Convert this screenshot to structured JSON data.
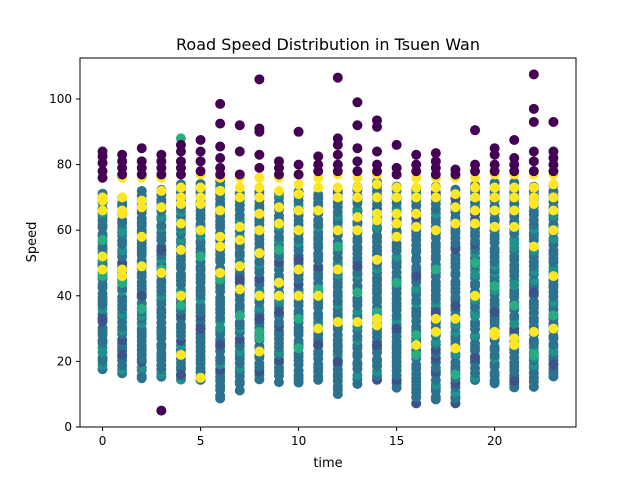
{
  "chart_data": {
    "type": "scatter",
    "title": "Road Speed Distribution in Tsuen Wan",
    "xlabel": "time",
    "ylabel": "Speed",
    "xlim": [
      -1.15,
      24.15
    ],
    "ylim": [
      0,
      112.5
    ],
    "x_ticks": [
      0,
      5,
      10,
      15,
      20
    ],
    "y_ticks": [
      0,
      20,
      40,
      60,
      80,
      100
    ],
    "grid": false,
    "legend": "none",
    "colors": {
      "dark_purple": "#440154",
      "purple_blue": "#3b528b",
      "teal_blue": "#2c728e",
      "green_teal": "#21918c",
      "sea_green": "#27ad81",
      "green": "#5ec962",
      "yellow": "#fde725"
    },
    "hours": [
      0,
      1,
      2,
      3,
      4,
      5,
      6,
      7,
      8,
      9,
      10,
      11,
      12,
      13,
      14,
      15,
      16,
      17,
      18,
      19,
      20,
      21,
      22,
      23
    ],
    "band_low": [
      17.5,
      16.5,
      14.5,
      15,
      14.5,
      14,
      8.5,
      11.5,
      14.5,
      14,
      13.5,
      14,
      10,
      13.5,
      14.5,
      12,
      7.5,
      8,
      7,
      14,
      13,
      12,
      12.5,
      15
    ],
    "band_high": [
      72,
      71,
      72,
      73,
      75,
      74,
      75,
      72,
      72,
      72,
      73,
      72,
      73,
      74,
      75,
      74,
      73,
      73,
      72,
      74,
      75,
      75,
      74,
      74
    ],
    "outliers_purple": [
      [
        0,
        84
      ],
      [
        0,
        82.5
      ],
      [
        0,
        80.5
      ],
      [
        0,
        78
      ],
      [
        0,
        76
      ],
      [
        1,
        83
      ],
      [
        1,
        81
      ],
      [
        1,
        79
      ],
      [
        1,
        77
      ],
      [
        2,
        85
      ],
      [
        2,
        81
      ],
      [
        2,
        79
      ],
      [
        2,
        77
      ],
      [
        3,
        83
      ],
      [
        3,
        81
      ],
      [
        3,
        79
      ],
      [
        3,
        77
      ],
      [
        3,
        5
      ],
      [
        4,
        86
      ],
      [
        4,
        84
      ],
      [
        4,
        81
      ],
      [
        4,
        79
      ],
      [
        4,
        77
      ],
      [
        5,
        87.5
      ],
      [
        5,
        84
      ],
      [
        5,
        81
      ],
      [
        5,
        78
      ],
      [
        6,
        98.5
      ],
      [
        6,
        92.5
      ],
      [
        6,
        85.5
      ],
      [
        6,
        82
      ],
      [
        6,
        79
      ],
      [
        6,
        77
      ],
      [
        7,
        92
      ],
      [
        7,
        84
      ],
      [
        7,
        77
      ],
      [
        8,
        106
      ],
      [
        8,
        91
      ],
      [
        8,
        90
      ],
      [
        8,
        83
      ],
      [
        8,
        79
      ],
      [
        9,
        81
      ],
      [
        9,
        79
      ],
      [
        9,
        77
      ],
      [
        10,
        90
      ],
      [
        10,
        80
      ],
      [
        10,
        77
      ],
      [
        11,
        82.5
      ],
      [
        11,
        80
      ],
      [
        11,
        78
      ],
      [
        12,
        106.5
      ],
      [
        12,
        88
      ],
      [
        12,
        86
      ],
      [
        12,
        83
      ],
      [
        12,
        80
      ],
      [
        12,
        78
      ],
      [
        13,
        99
      ],
      [
        13,
        92
      ],
      [
        13,
        85
      ],
      [
        13,
        81
      ],
      [
        13,
        78
      ],
      [
        14,
        93.5
      ],
      [
        14,
        91.5
      ],
      [
        14,
        84
      ],
      [
        14,
        80
      ],
      [
        14,
        78
      ],
      [
        15,
        86
      ],
      [
        15,
        79
      ],
      [
        15,
        77
      ],
      [
        16,
        83
      ],
      [
        16,
        80
      ],
      [
        16,
        78
      ],
      [
        17,
        83.5
      ],
      [
        17,
        81
      ],
      [
        17,
        79
      ],
      [
        17,
        77
      ],
      [
        18,
        78.5
      ],
      [
        18,
        77
      ],
      [
        19,
        90.5
      ],
      [
        19,
        80
      ],
      [
        19,
        78
      ],
      [
        20,
        85
      ],
      [
        20,
        83
      ],
      [
        20,
        80
      ],
      [
        20,
        78
      ],
      [
        21,
        87.5
      ],
      [
        21,
        82
      ],
      [
        21,
        80
      ],
      [
        21,
        78
      ],
      [
        22,
        107.5
      ],
      [
        22,
        97
      ],
      [
        22,
        93
      ],
      [
        22,
        84
      ],
      [
        22,
        81
      ],
      [
        22,
        78
      ],
      [
        23,
        93
      ],
      [
        23,
        84
      ],
      [
        23,
        82
      ],
      [
        23,
        80
      ],
      [
        23,
        78
      ]
    ],
    "points_yellow": [
      [
        0,
        76
      ],
      [
        0,
        70
      ],
      [
        0,
        69
      ],
      [
        0,
        66
      ],
      [
        0,
        52
      ],
      [
        0,
        48
      ],
      [
        1,
        76
      ],
      [
        1,
        70
      ],
      [
        1,
        66
      ],
      [
        1,
        65
      ],
      [
        1,
        48
      ],
      [
        1,
        46
      ],
      [
        2,
        76
      ],
      [
        2,
        69
      ],
      [
        2,
        67
      ],
      [
        2,
        58
      ],
      [
        2,
        49
      ],
      [
        3,
        76
      ],
      [
        3,
        72
      ],
      [
        3,
        67
      ],
      [
        3,
        47
      ],
      [
        4,
        73
      ],
      [
        4,
        70
      ],
      [
        4,
        68
      ],
      [
        4,
        62
      ],
      [
        4,
        54
      ],
      [
        4,
        40
      ],
      [
        4,
        22
      ],
      [
        5,
        77
      ],
      [
        5,
        73
      ],
      [
        5,
        70
      ],
      [
        5,
        68
      ],
      [
        5,
        60
      ],
      [
        5,
        15
      ],
      [
        6,
        76
      ],
      [
        6,
        72
      ],
      [
        6,
        66
      ],
      [
        6,
        58
      ],
      [
        6,
        55
      ],
      [
        6,
        47
      ],
      [
        7,
        76
      ],
      [
        7,
        73
      ],
      [
        7,
        70
      ],
      [
        7,
        61
      ],
      [
        7,
        57
      ],
      [
        7,
        49
      ],
      [
        7,
        42
      ],
      [
        8,
        76
      ],
      [
        8,
        73
      ],
      [
        8,
        70
      ],
      [
        8,
        65
      ],
      [
        8,
        60
      ],
      [
        8,
        53
      ],
      [
        8,
        40
      ],
      [
        8,
        23
      ],
      [
        9,
        76
      ],
      [
        9,
        72
      ],
      [
        9,
        67
      ],
      [
        9,
        62
      ],
      [
        9,
        44
      ],
      [
        9,
        40
      ],
      [
        10,
        77
      ],
      [
        10,
        74
      ],
      [
        10,
        71
      ],
      [
        10,
        66
      ],
      [
        10,
        60
      ],
      [
        10,
        48
      ],
      [
        10,
        40
      ],
      [
        11,
        76
      ],
      [
        11,
        73
      ],
      [
        11,
        66
      ],
      [
        11,
        40
      ],
      [
        11,
        30
      ],
      [
        12,
        77
      ],
      [
        12,
        73
      ],
      [
        12,
        70
      ],
      [
        12,
        60
      ],
      [
        12,
        48
      ],
      [
        12,
        32
      ],
      [
        13,
        76
      ],
      [
        13,
        73
      ],
      [
        13,
        70
      ],
      [
        13,
        64
      ],
      [
        13,
        60
      ],
      [
        13,
        32
      ],
      [
        14,
        77
      ],
      [
        14,
        74
      ],
      [
        14,
        70
      ],
      [
        14,
        65
      ],
      [
        14,
        63
      ],
      [
        14,
        51
      ],
      [
        14,
        33
      ],
      [
        14,
        31
      ],
      [
        15,
        77
      ],
      [
        15,
        73
      ],
      [
        15,
        70
      ],
      [
        15,
        65
      ],
      [
        15,
        62
      ],
      [
        15,
        58
      ],
      [
        16,
        76
      ],
      [
        16,
        73
      ],
      [
        16,
        70
      ],
      [
        16,
        65
      ],
      [
        16,
        61
      ],
      [
        16,
        25
      ],
      [
        17,
        76
      ],
      [
        17,
        73
      ],
      [
        17,
        70
      ],
      [
        17,
        60
      ],
      [
        17,
        33
      ],
      [
        17,
        29
      ],
      [
        18,
        76
      ],
      [
        18,
        71
      ],
      [
        18,
        67
      ],
      [
        18,
        62
      ],
      [
        18,
        33
      ],
      [
        18,
        24
      ],
      [
        19,
        76
      ],
      [
        19,
        73
      ],
      [
        19,
        70
      ],
      [
        19,
        66
      ],
      [
        19,
        62
      ],
      [
        19,
        40
      ],
      [
        20,
        77
      ],
      [
        20,
        73
      ],
      [
        20,
        70
      ],
      [
        20,
        66
      ],
      [
        20,
        61
      ],
      [
        20,
        29
      ],
      [
        20,
        28
      ],
      [
        21,
        77
      ],
      [
        21,
        73
      ],
      [
        21,
        70
      ],
      [
        21,
        66
      ],
      [
        21,
        61
      ],
      [
        21,
        27
      ],
      [
        21,
        25
      ],
      [
        22,
        77
      ],
      [
        22,
        73
      ],
      [
        22,
        70
      ],
      [
        22,
        68
      ],
      [
        22,
        55
      ],
      [
        22,
        29
      ],
      [
        23,
        77
      ],
      [
        23,
        74
      ],
      [
        23,
        70
      ],
      [
        23,
        66
      ],
      [
        23,
        60
      ],
      [
        23,
        46
      ],
      [
        23,
        30
      ]
    ],
    "points_green": [
      [
        0,
        46
      ],
      [
        0,
        57
      ],
      [
        1,
        44
      ],
      [
        2,
        36
      ],
      [
        3,
        48
      ],
      [
        4,
        88
      ],
      [
        4,
        37
      ],
      [
        5,
        52
      ],
      [
        6,
        45
      ],
      [
        7,
        34
      ],
      [
        8,
        29
      ],
      [
        8,
        27
      ],
      [
        9,
        54
      ],
      [
        10,
        33
      ],
      [
        10,
        24
      ],
      [
        11,
        42
      ],
      [
        12,
        55
      ],
      [
        13,
        41
      ],
      [
        14,
        35
      ],
      [
        15,
        44
      ],
      [
        16,
        22
      ],
      [
        16,
        28
      ],
      [
        17,
        48
      ],
      [
        18,
        16
      ],
      [
        19,
        50
      ],
      [
        20,
        43
      ],
      [
        21,
        37
      ],
      [
        22,
        22
      ],
      [
        23,
        34
      ]
    ],
    "points_purple_blue": [
      [
        0,
        33
      ],
      [
        1,
        22
      ],
      [
        2,
        40
      ],
      [
        3,
        54
      ],
      [
        4,
        16
      ],
      [
        5,
        30
      ],
      [
        6,
        25
      ],
      [
        7,
        45
      ],
      [
        8,
        33
      ],
      [
        9,
        35
      ],
      [
        10,
        51
      ],
      [
        11,
        25
      ],
      [
        12,
        20
      ],
      [
        13,
        49
      ],
      [
        14,
        25
      ],
      [
        15,
        30
      ],
      [
        16,
        46
      ],
      [
        17,
        35
      ],
      [
        18,
        37
      ],
      [
        19,
        21
      ],
      [
        20,
        35
      ],
      [
        21,
        14
      ],
      [
        22,
        41
      ],
      [
        23,
        19
      ]
    ]
  }
}
